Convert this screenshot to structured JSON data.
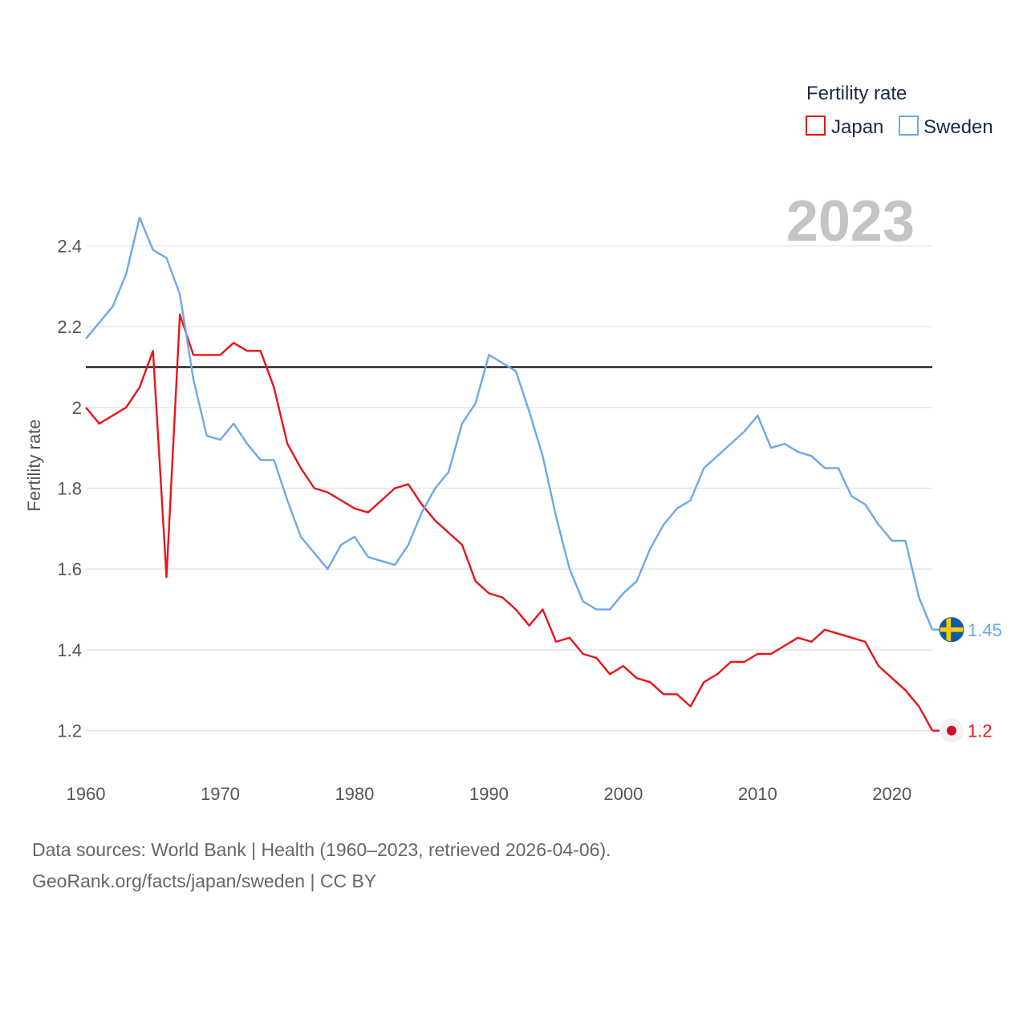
{
  "chart_data": {
    "type": "line",
    "title": "Fertility rate",
    "ylabel": "Fertility rate",
    "xlabel": "",
    "year_label": "2023",
    "xlim": [
      1960,
      2023
    ],
    "ylim": [
      1.1,
      2.52
    ],
    "x_ticks": [
      1960,
      1970,
      1980,
      1990,
      2000,
      2010,
      2020
    ],
    "y_ticks": [
      1.2,
      1.4,
      1.6,
      1.8,
      2.0,
      2.2,
      2.4
    ],
    "y_tick_labels": [
      "1.2",
      "1.4",
      "1.6",
      "1.8",
      "2",
      "2.2",
      "2.4"
    ],
    "reference_line": 2.1,
    "x": [
      1960,
      1961,
      1962,
      1963,
      1964,
      1965,
      1966,
      1967,
      1968,
      1969,
      1970,
      1971,
      1972,
      1973,
      1974,
      1975,
      1976,
      1977,
      1978,
      1979,
      1980,
      1981,
      1982,
      1983,
      1984,
      1985,
      1986,
      1987,
      1988,
      1989,
      1990,
      1991,
      1992,
      1993,
      1994,
      1995,
      1996,
      1997,
      1998,
      1999,
      2000,
      2001,
      2002,
      2003,
      2004,
      2005,
      2006,
      2007,
      2008,
      2009,
      2010,
      2011,
      2012,
      2013,
      2014,
      2015,
      2016,
      2017,
      2018,
      2019,
      2020,
      2021,
      2022,
      2023
    ],
    "series": [
      {
        "name": "Japan",
        "color": "#e8141a",
        "end_label": "1.2",
        "flag": "japan-flag",
        "values": [
          2.0,
          1.96,
          1.98,
          2.0,
          2.05,
          2.14,
          1.58,
          2.23,
          2.13,
          2.13,
          2.13,
          2.16,
          2.14,
          2.14,
          2.05,
          1.91,
          1.85,
          1.8,
          1.79,
          1.77,
          1.75,
          1.74,
          1.77,
          1.8,
          1.81,
          1.76,
          1.72,
          1.69,
          1.66,
          1.57,
          1.54,
          1.53,
          1.5,
          1.46,
          1.5,
          1.42,
          1.43,
          1.39,
          1.38,
          1.34,
          1.36,
          1.33,
          1.32,
          1.29,
          1.29,
          1.26,
          1.32,
          1.34,
          1.37,
          1.37,
          1.39,
          1.39,
          1.41,
          1.43,
          1.42,
          1.45,
          1.44,
          1.43,
          1.42,
          1.36,
          1.33,
          1.3,
          1.26,
          1.2
        ]
      },
      {
        "name": "Sweden",
        "color": "#6aa9e9",
        "end_label": "1.45",
        "flag": "sweden-flag",
        "values": [
          2.17,
          2.21,
          2.25,
          2.33,
          2.47,
          2.39,
          2.37,
          2.28,
          2.07,
          1.93,
          1.92,
          1.96,
          1.91,
          1.87,
          1.87,
          1.77,
          1.68,
          1.64,
          1.6,
          1.66,
          1.68,
          1.63,
          1.62,
          1.61,
          1.66,
          1.74,
          1.8,
          1.84,
          1.96,
          2.01,
          2.13,
          2.11,
          2.09,
          1.99,
          1.88,
          1.73,
          1.6,
          1.52,
          1.5,
          1.5,
          1.54,
          1.57,
          1.65,
          1.71,
          1.75,
          1.77,
          1.85,
          1.88,
          1.91,
          1.94,
          1.98,
          1.9,
          1.91,
          1.89,
          1.88,
          1.85,
          1.85,
          1.78,
          1.76,
          1.71,
          1.67,
          1.67,
          1.53,
          1.45
        ]
      }
    ],
    "legend": {
      "title": "Fertility rate",
      "placement": "top-right"
    }
  },
  "source": {
    "line1": "Data sources: World Bank | Health (1960–2023, retrieved 2026-04-06).",
    "line2": "GeoRank.org/facts/japan/sweden | CC BY"
  }
}
